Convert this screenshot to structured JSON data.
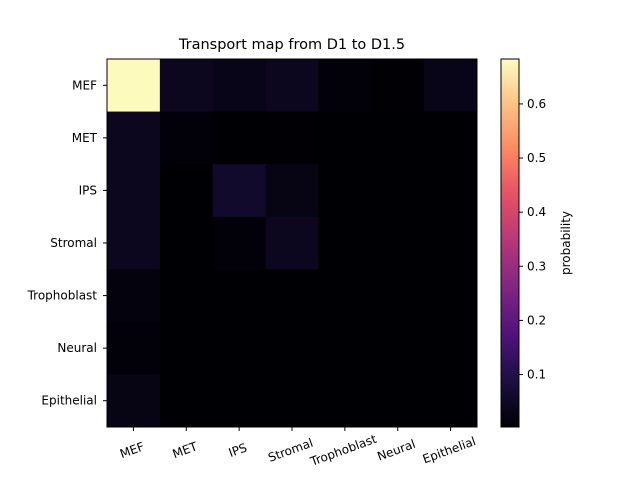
{
  "chart_data": {
    "type": "heatmap",
    "title": "Transport map from D1 to D1.5",
    "x_categories": [
      "MEF",
      "MET",
      "IPS",
      "Stromal",
      "Trophoblast",
      "Neural",
      "Epithelial"
    ],
    "y_categories": [
      "MEF",
      "MET",
      "IPS",
      "Stromal",
      "Trophoblast",
      "Neural",
      "Epithelial"
    ],
    "values": [
      [
        0.68,
        0.04,
        0.03,
        0.04,
        0.01,
        0.005,
        0.03
      ],
      [
        0.04,
        0.01,
        0.003,
        0.005,
        0.003,
        0.003,
        0.003
      ],
      [
        0.04,
        0.003,
        0.06,
        0.025,
        0.003,
        0.003,
        0.003
      ],
      [
        0.04,
        0.003,
        0.01,
        0.04,
        0.003,
        0.003,
        0.003
      ],
      [
        0.015,
        0.003,
        0.003,
        0.003,
        0.003,
        0.003,
        0.003
      ],
      [
        0.01,
        0.003,
        0.003,
        0.003,
        0.003,
        0.003,
        0.003
      ],
      [
        0.025,
        0.003,
        0.003,
        0.003,
        0.003,
        0.003,
        0.003
      ]
    ],
    "colormap": "magma",
    "colorbar": {
      "label": "probability",
      "range": [
        0.003,
        0.683
      ],
      "ticks": [
        0.1,
        0.2,
        0.3,
        0.4,
        0.5,
        0.6
      ],
      "tick_labels": [
        "0.1",
        "0.2",
        "0.3",
        "0.4",
        "0.5",
        "0.6"
      ]
    }
  }
}
